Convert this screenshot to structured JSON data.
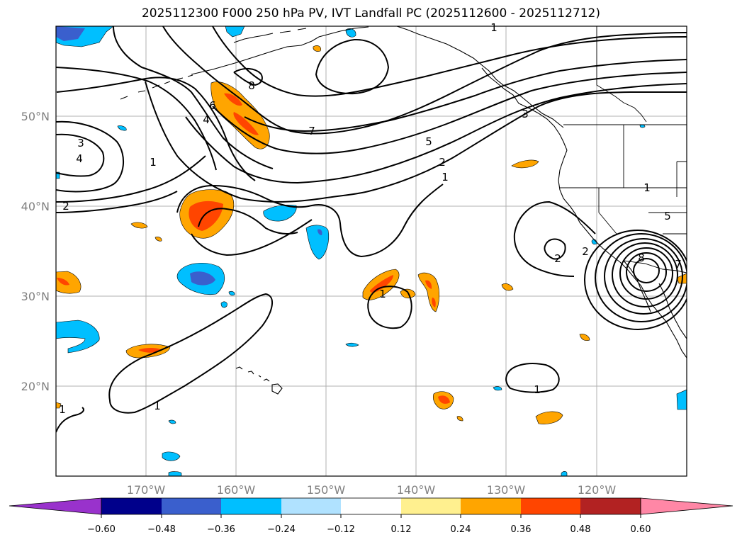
{
  "title": "2025112300 F000 250 hPa PV, IVT Landfall PC (2025112600 - 2025112712)",
  "map": {
    "lon_range": [
      -180,
      -110
    ],
    "lat_range": [
      10,
      60
    ],
    "gridlines": true,
    "lon_ticks": [
      {
        "lon": -170,
        "label": "170°W"
      },
      {
        "lon": -160,
        "label": "160°W"
      },
      {
        "lon": -150,
        "label": "150°W"
      },
      {
        "lon": -140,
        "label": "140°W"
      },
      {
        "lon": -130,
        "label": "130°W"
      },
      {
        "lon": -120,
        "label": "120°W"
      }
    ],
    "lat_ticks": [
      {
        "lat": 50,
        "label": "50°N"
      },
      {
        "lat": 40,
        "label": "40°N"
      },
      {
        "lat": 30,
        "label": "30°N"
      },
      {
        "lat": 20,
        "label": "20°N"
      }
    ],
    "contour_labels": [
      "1",
      "2",
      "3",
      "4",
      "5",
      "6",
      "7",
      "8",
      "1",
      "2",
      "1",
      "1",
      "2",
      "1",
      "5",
      "7",
      "8",
      "1",
      "1",
      "3",
      "4",
      "2",
      "1"
    ]
  },
  "colorbar": {
    "extend": "both",
    "colors": [
      "#9932cc",
      "#00008b",
      "#3a5fcd",
      "#00bfff",
      "#b0e2ff",
      "#ffffff",
      "#fff08f",
      "#ffa500",
      "#ff4500",
      "#b22222",
      "#ff87a6"
    ],
    "ticks": [
      "−0.60",
      "−0.48",
      "−0.36",
      "−0.24",
      "−0.12",
      "0.12",
      "0.24",
      "0.36",
      "0.48",
      "0.60"
    ]
  },
  "colors": {
    "contour_line": "#000000",
    "gridline": "#b0b0b0",
    "coastline": "#000000",
    "tick_label": "#808080"
  }
}
